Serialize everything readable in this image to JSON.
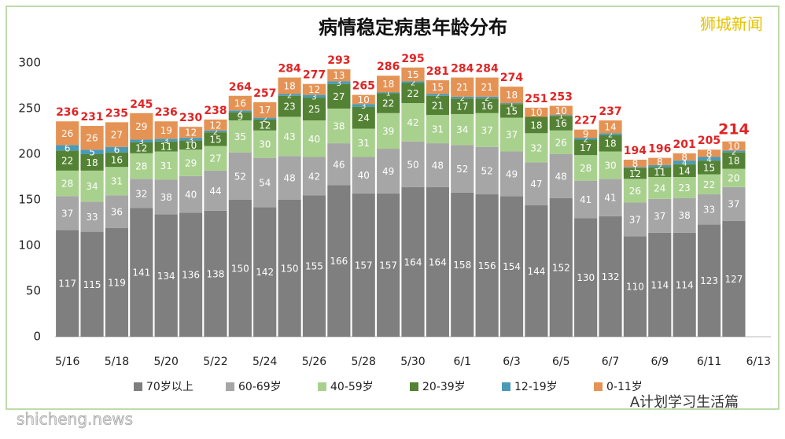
{
  "chart_data": {
    "type": "stacked_bar",
    "title": "病情稳定病患年龄分布",
    "watermarks": [
      "狮城新闻",
      "shicheng.news",
      "A计划学习生活篇"
    ],
    "categories": [
      "5/16",
      null,
      "5/18",
      null,
      "5/20",
      null,
      "5/22",
      null,
      "5/24",
      null,
      "5/26",
      null,
      "5/28",
      null,
      "5/30",
      null,
      "6/1",
      null,
      "6/3",
      null,
      "6/5",
      null,
      "6/7",
      null,
      "6/9",
      null,
      "6/11",
      null,
      "6/13"
    ],
    "series": [
      {
        "name": "70岁以上",
        "color": "#7f7f7f",
        "values": [
          117,
          115,
          119,
          141,
          134,
          136,
          138,
          150,
          142,
          150,
          155,
          166,
          157,
          157,
          164,
          164,
          158,
          156,
          154,
          144,
          152,
          130,
          132,
          110,
          114,
          114,
          123,
          127,
          null
        ]
      },
      {
        "name": "60-69岁",
        "color": "#a6a6a6",
        "values": [
          37,
          33,
          36,
          32,
          38,
          40,
          44,
          52,
          54,
          48,
          42,
          46,
          40,
          49,
          50,
          48,
          52,
          52,
          49,
          47,
          48,
          41,
          41,
          37,
          37,
          38,
          33,
          37,
          null
        ]
      },
      {
        "name": "40-59岁",
        "color": "#a9d18e",
        "values": [
          28,
          34,
          31,
          28,
          31,
          29,
          27,
          35,
          30,
          43,
          40,
          38,
          31,
          39,
          42,
          31,
          34,
          37,
          37,
          32,
          26,
          28,
          30,
          26,
          24,
          23,
          22,
          20,
          null
        ]
      },
      {
        "name": "20-39岁",
        "color": "#548235",
        "values": [
          22,
          18,
          16,
          12,
          11,
          10,
          15,
          9,
          12,
          23,
          25,
          27,
          24,
          22,
          22,
          21,
          17,
          16,
          15,
          18,
          16,
          17,
          18,
          12,
          11,
          14,
          15,
          18,
          null
        ]
      },
      {
        "name": "12-19岁",
        "color": "#4a9bb5",
        "values": [
          6,
          5,
          6,
          3,
          3,
          3,
          2,
          2,
          2,
          2,
          3,
          3,
          3,
          1,
          2,
          2,
          2,
          2,
          1,
          0,
          1,
          2,
          2,
          1,
          2,
          4,
          4,
          2,
          null
        ]
      },
      {
        "name": "0-11岁",
        "color": "#e59355",
        "values": [
          26,
          26,
          27,
          29,
          19,
          12,
          12,
          16,
          17,
          18,
          12,
          13,
          10,
          18,
          15,
          15,
          21,
          21,
          18,
          10,
          10,
          9,
          14,
          8,
          8,
          8,
          8,
          10,
          null
        ]
      }
    ],
    "totals": [
      236,
      231,
      235,
      245,
      236,
      230,
      238,
      264,
      257,
      284,
      277,
      293,
      265,
      286,
      295,
      281,
      284,
      284,
      274,
      251,
      253,
      227,
      237,
      194,
      196,
      201,
      205,
      214,
      null
    ],
    "ylim": [
      0,
      315
    ],
    "yticks": [
      0,
      50,
      100,
      150,
      200,
      250,
      300
    ],
    "grid": false
  }
}
